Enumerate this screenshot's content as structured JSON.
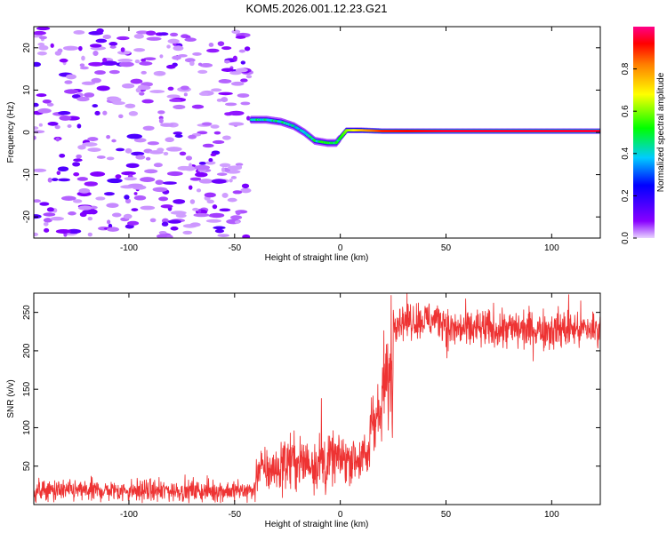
{
  "title": "KOM5.2026.001.12.23.G21",
  "chart_data": [
    {
      "type": "heatmap",
      "name": "spectrogram",
      "xlabel": "Height of straight line (km)",
      "ylabel": "Frequency (Hz)",
      "xlim": [
        -145,
        123
      ],
      "ylim": [
        -25,
        25
      ],
      "xticks": [
        -100,
        -50,
        0,
        50,
        100
      ],
      "yticks": [
        -20,
        -10,
        0,
        10,
        20
      ],
      "grid": false,
      "colorbar": {
        "label": "Normalized spectral amplitude",
        "range": [
          0,
          1
        ],
        "ticks": [
          "0.0",
          "0.2",
          "0.4",
          "0.6",
          "0.8"
        ],
        "tick_values": [
          0.0,
          0.2,
          0.4,
          0.6,
          0.8
        ],
        "colormap": "hsv-reversed (violet low to red high)"
      },
      "features": {
        "noise_region_x": [
          -145,
          -43
        ],
        "signal_start_x": -43,
        "signal_trace": [
          {
            "x": -42,
            "freq": 3.0,
            "amp": 0.45
          },
          {
            "x": -35,
            "freq": 3.0,
            "amp": 0.4
          },
          {
            "x": -28,
            "freq": 2.5,
            "amp": 0.45
          },
          {
            "x": -22,
            "freq": 1.5,
            "amp": 0.4
          },
          {
            "x": -17,
            "freq": 0.0,
            "amp": 0.4
          },
          {
            "x": -12,
            "freq": -2.0,
            "amp": 0.45
          },
          {
            "x": -6,
            "freq": -2.5,
            "amp": 0.5
          },
          {
            "x": -2,
            "freq": -2.5,
            "amp": 0.45
          },
          {
            "x": 3,
            "freq": 0.5,
            "amp": 0.6
          },
          {
            "x": 10,
            "freq": 0.5,
            "amp": 0.75
          },
          {
            "x": 20,
            "freq": 0.3,
            "amp": 0.9
          },
          {
            "x": 50,
            "freq": 0.3,
            "amp": 0.95
          },
          {
            "x": 123,
            "freq": 0.3,
            "amp": 0.95
          }
        ]
      }
    },
    {
      "type": "line",
      "name": "snr",
      "xlabel": "Height of straight line (km)",
      "ylabel": "SNR (v/v)",
      "xlim": [
        -145,
        123
      ],
      "ylim": [
        0,
        275
      ],
      "xticks": [
        -100,
        -50,
        0,
        50,
        100
      ],
      "yticks": [
        50,
        100,
        150,
        200,
        250
      ],
      "color": "#ee3333",
      "grid": false,
      "series": [
        {
          "name": "SNR",
          "segments": [
            {
              "x": [
                -145,
                -40
              ],
              "mean": 18,
              "noise": 7
            },
            {
              "x": [
                -40,
                -28
              ],
              "mean": 45,
              "noise": 14
            },
            {
              "x": [
                -28,
                -5
              ],
              "mean": 55,
              "noise": 18
            },
            {
              "x": [
                -5,
                14
              ],
              "mean": 60,
              "noise": 15
            },
            {
              "x": [
                14,
                20
              ],
              "mean": 115,
              "noise": 20
            },
            {
              "x": [
                20,
                25
              ],
              "mean": 160,
              "noise": 30
            },
            {
              "x": [
                25,
                50
              ],
              "mean": 240,
              "noise": 12
            },
            {
              "x": [
                50,
                123
              ],
              "mean": 228,
              "noise": 13
            }
          ],
          "spikes": [
            {
              "x": -9,
              "y": 138
            },
            {
              "x": -7,
              "y": 13
            },
            {
              "x": 24,
              "y": 272
            },
            {
              "x": 108,
              "y": 273
            }
          ]
        }
      ]
    }
  ]
}
